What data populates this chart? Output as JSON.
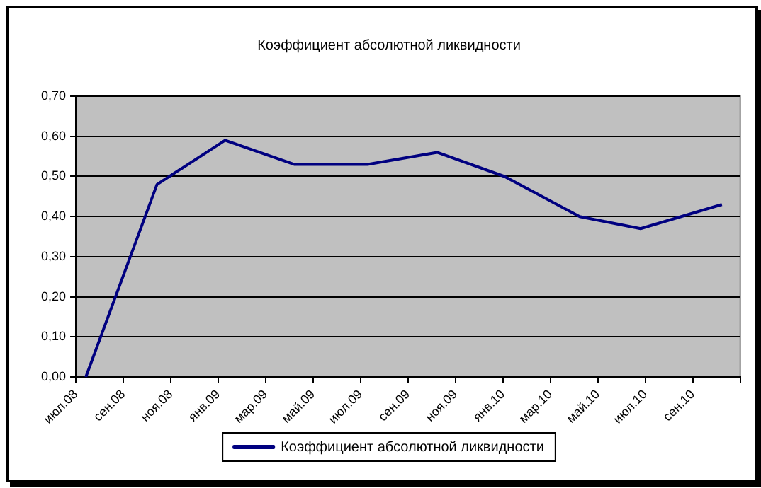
{
  "chart_data": {
    "type": "line",
    "title": "Коэффициент абсолютной ликвидности",
    "x": [
      "2008-07-14",
      "2008-10-14",
      "2009-01-10",
      "2009-04-07",
      "2009-07-10",
      "2009-10-08",
      "2010-01-03",
      "2010-04-08",
      "2010-06-25",
      "2010-10-08"
    ],
    "series": [
      {
        "name": "Коэффициент абсолютной ликвидности",
        "color": "#000080",
        "values": [
          0,
          0.48,
          0.59,
          0.53,
          0.53,
          0.56,
          0.5,
          0.4,
          0.37,
          0.43
        ]
      }
    ],
    "xlim": [
      "2008-07-01",
      "2010-11-01"
    ],
    "xticks": [
      {
        "value": "2008-07-01",
        "label": "июл.08"
      },
      {
        "value": "2008-09-01",
        "label": "сен.08"
      },
      {
        "value": "2008-11-01",
        "label": "ноя.08"
      },
      {
        "value": "2009-01-01",
        "label": "янв.09"
      },
      {
        "value": "2009-03-01",
        "label": "мар.09"
      },
      {
        "value": "2009-05-01",
        "label": "май.09"
      },
      {
        "value": "2009-07-01",
        "label": "июл.09"
      },
      {
        "value": "2009-09-01",
        "label": "сен.09"
      },
      {
        "value": "2009-11-01",
        "label": "ноя.09"
      },
      {
        "value": "2010-01-01",
        "label": "янв.10"
      },
      {
        "value": "2010-03-01",
        "label": "мар.10"
      },
      {
        "value": "2010-05-01",
        "label": "май.10"
      },
      {
        "value": "2010-07-01",
        "label": "июл.10"
      },
      {
        "value": "2010-09-01",
        "label": "сен.10"
      },
      {
        "value": "2010-11-01",
        "label": null
      }
    ],
    "ylim": [
      0,
      0.7
    ],
    "yticks": [
      {
        "value": 0,
        "label": "0,00"
      },
      {
        "value": 0.1,
        "label": "0,10"
      },
      {
        "value": 0.2,
        "label": "0,20"
      },
      {
        "value": 0.3,
        "label": "0,30"
      },
      {
        "value": 0.4,
        "label": "0,40"
      },
      {
        "value": 0.5,
        "label": "0,50"
      },
      {
        "value": 0.6,
        "label": "0,60"
      },
      {
        "value": 0.7,
        "label": "0,70"
      }
    ],
    "grid": "y",
    "legend": "bottom",
    "marker": "none",
    "line_style": "solid"
  }
}
